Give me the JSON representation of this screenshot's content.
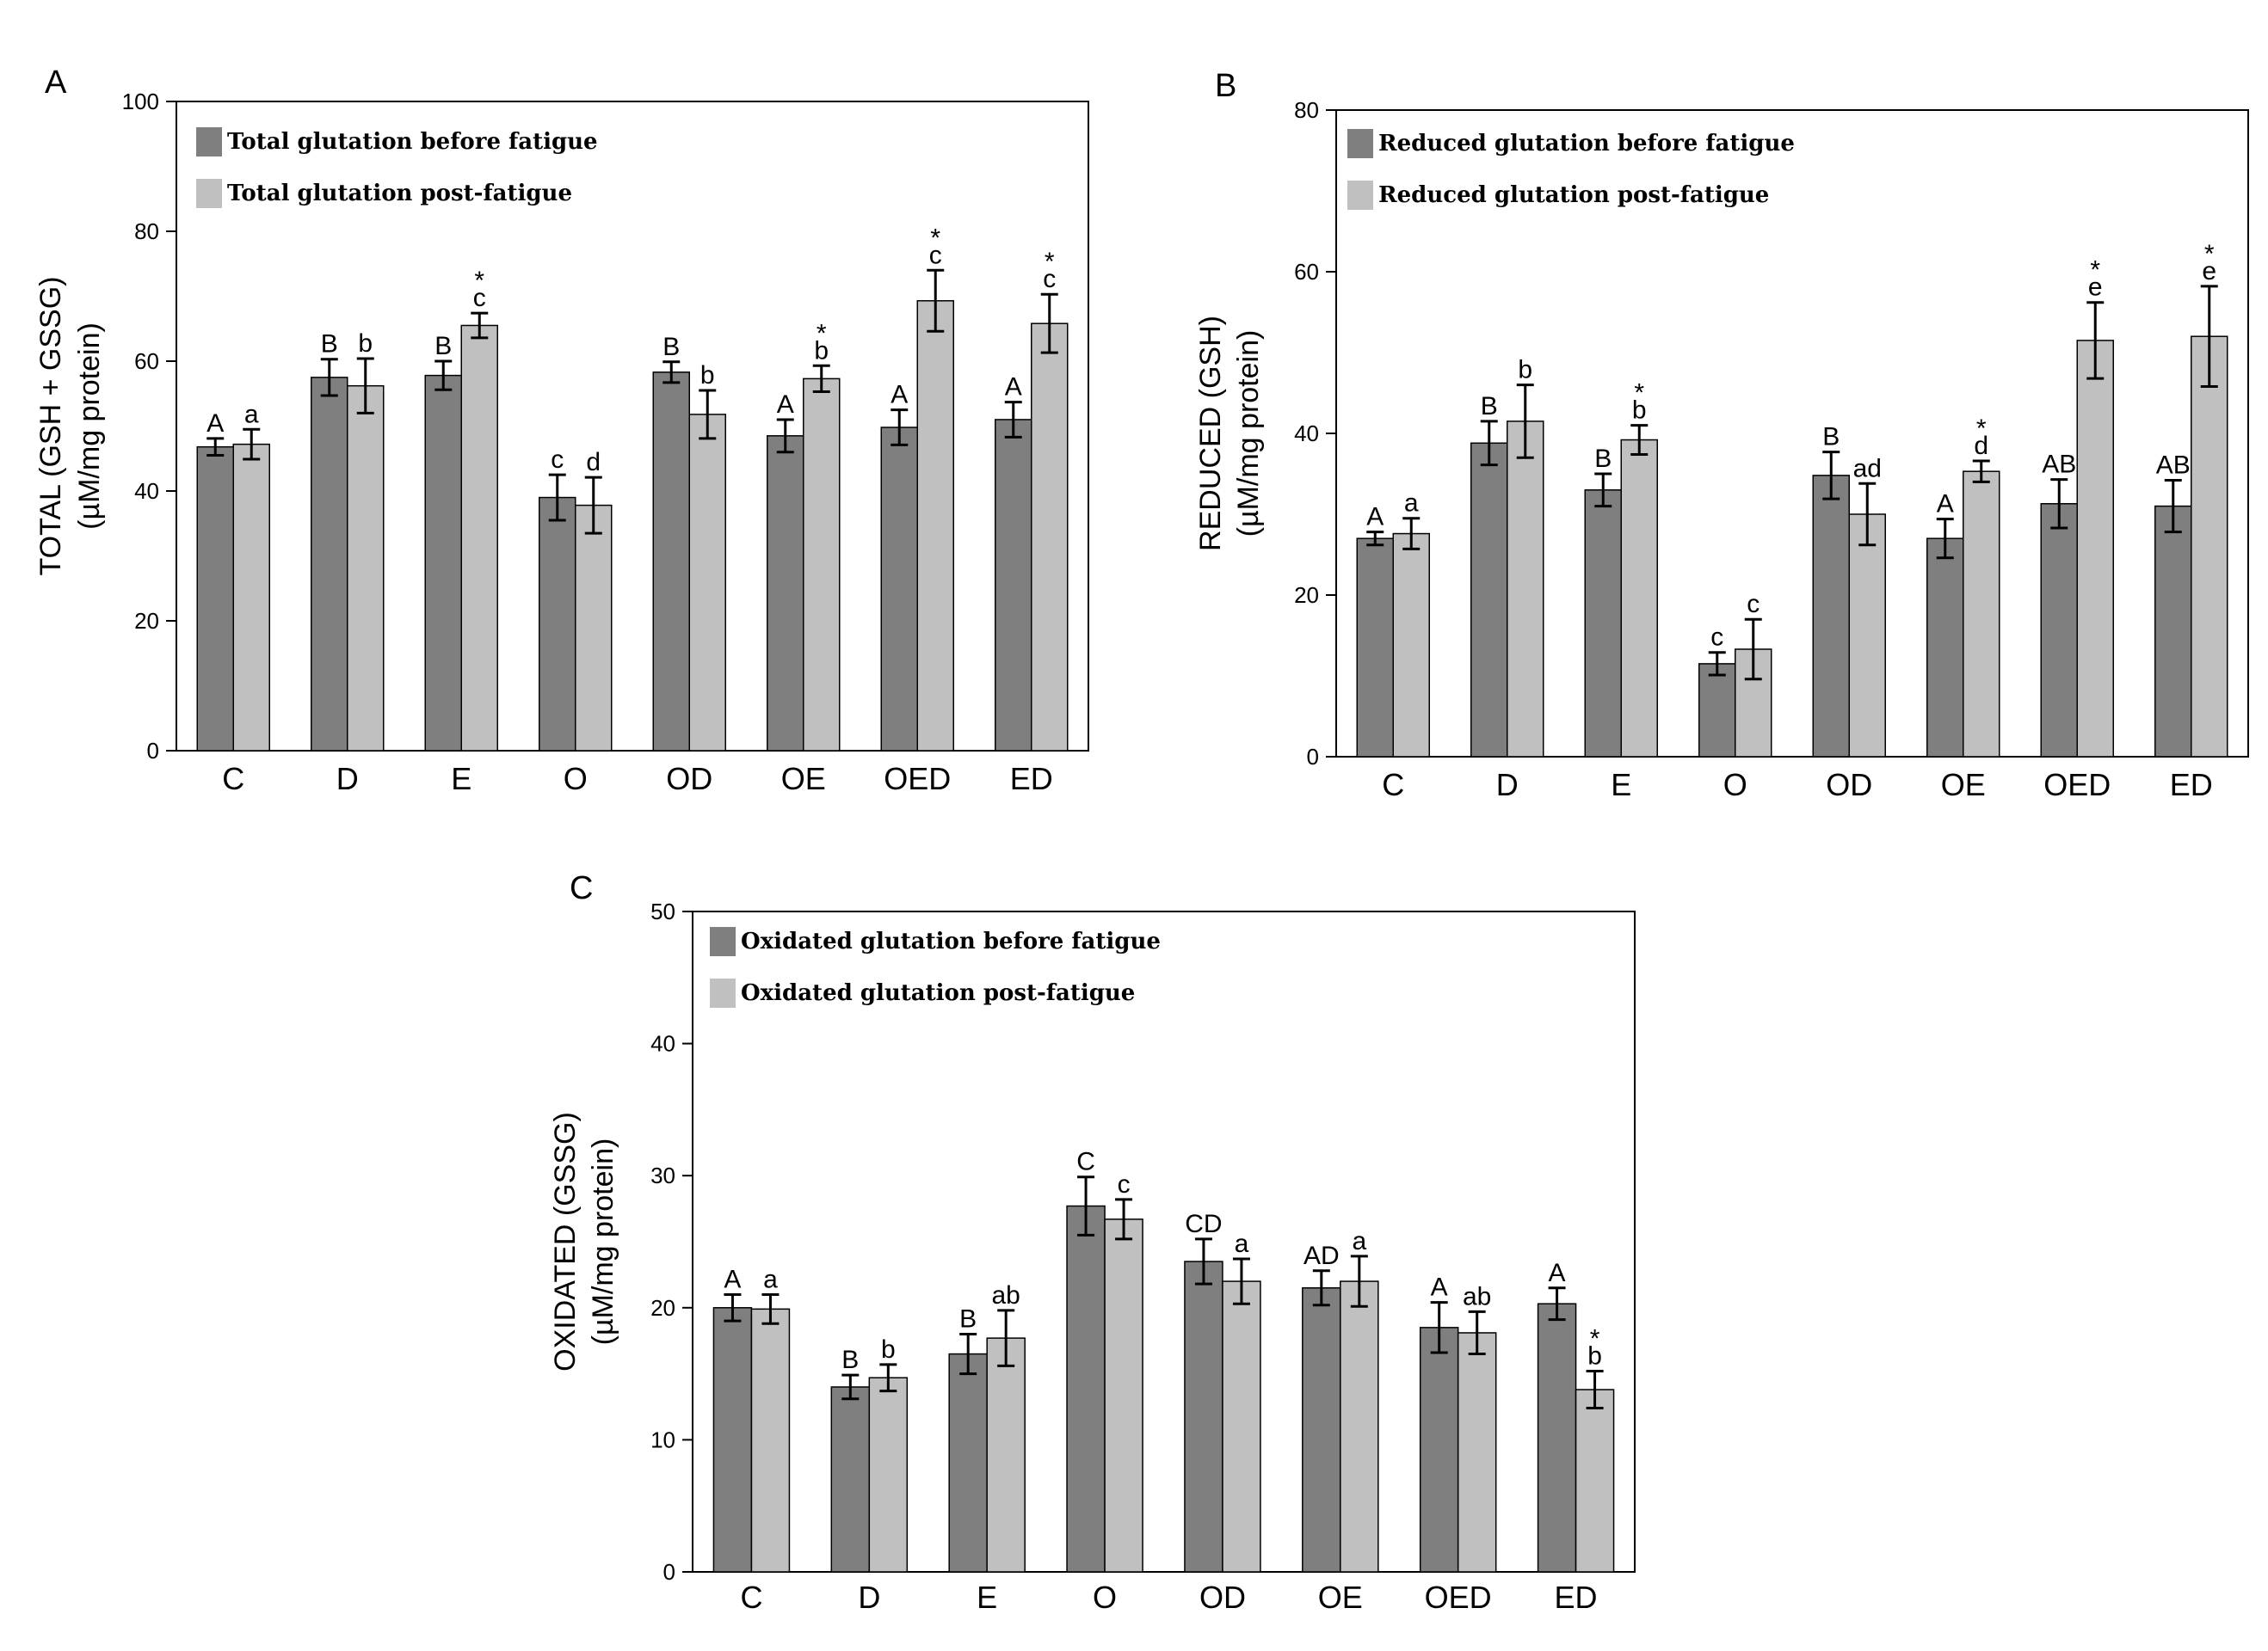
{
  "chart_data": [
    {
      "type": "bar",
      "panel": "A",
      "categories": [
        "C",
        "D",
        "E",
        "O",
        "OD",
        "OE",
        "OED",
        "ED"
      ],
      "ylabel_line1": "TOTAL (GSH + GSSG)",
      "ylabel_line2": "(µM/mg protein)",
      "ylim": [
        0,
        100
      ],
      "yticks": [
        0,
        20,
        40,
        60,
        80,
        100
      ],
      "colors": {
        "before": "#7f7f7f",
        "post": "#c0c0c0"
      },
      "series": [
        {
          "name": "Total glutation before fatigue",
          "values": [
            46.8,
            57.5,
            57.8,
            39,
            58.3,
            48.5,
            49.8,
            51
          ],
          "errors": [
            1.3,
            2.8,
            2.2,
            3.5,
            1.6,
            2.5,
            2.7,
            2.7
          ],
          "labels": [
            "A",
            "B",
            "B",
            "c",
            "B",
            "A",
            "A",
            "A"
          ]
        },
        {
          "name": "Total glutation post-fatigue",
          "values": [
            47.2,
            56.2,
            65.5,
            37.8,
            51.8,
            57.3,
            69.3,
            65.8
          ],
          "errors": [
            2.3,
            4.2,
            1.9,
            4.3,
            3.7,
            2,
            4.7,
            4.5
          ],
          "labels": [
            "a",
            "b",
            "c",
            "d",
            "b",
            "b",
            "c",
            "c"
          ],
          "stars": [
            "",
            "",
            "*",
            "",
            "",
            "*",
            "*",
            "*"
          ]
        }
      ]
    },
    {
      "type": "bar",
      "panel": "B",
      "categories": [
        "C",
        "D",
        "E",
        "O",
        "OD",
        "OE",
        "OED",
        "ED"
      ],
      "ylabel_line1": "REDUCED (GSH)",
      "ylabel_line2": "(µM/mg protein)",
      "ylim": [
        0,
        80
      ],
      "yticks": [
        0,
        20,
        40,
        60,
        80
      ],
      "colors": {
        "before": "#7f7f7f",
        "post": "#c0c0c0"
      },
      "series": [
        {
          "name": "Reduced glutation before fatigue",
          "values": [
            27,
            38.8,
            33,
            11.5,
            34.8,
            27,
            31.3,
            31
          ],
          "errors": [
            0.8,
            2.7,
            2,
            1.4,
            2.9,
            2.4,
            3,
            3.2
          ],
          "labels": [
            "A",
            "B",
            "B",
            "c",
            "B",
            "A",
            "AB",
            "AB"
          ]
        },
        {
          "name": "Reduced glutation post-fatigue",
          "values": [
            27.6,
            41.5,
            39.2,
            13.3,
            30,
            35.3,
            51.5,
            52
          ],
          "errors": [
            1.9,
            4.5,
            1.8,
            3.7,
            3.8,
            1.3,
            4.7,
            6.2
          ],
          "labels": [
            "a",
            "b",
            "b",
            "c",
            "ad",
            "d",
            "e",
            "e"
          ],
          "stars": [
            "",
            "",
            "*",
            "",
            "",
            "*",
            "*",
            "*"
          ]
        }
      ]
    },
    {
      "type": "bar",
      "panel": "C",
      "categories": [
        "C",
        "D",
        "E",
        "O",
        "OD",
        "OE",
        "OED",
        "ED"
      ],
      "ylabel_line1": "OXIDATED (GSSG)",
      "ylabel_line2": "(µM/mg protein)",
      "ylim": [
        0,
        50
      ],
      "yticks": [
        0,
        10,
        20,
        30,
        40,
        50
      ],
      "colors": {
        "before": "#7f7f7f",
        "post": "#c0c0c0"
      },
      "series": [
        {
          "name": "Oxidated glutation before fatigue",
          "values": [
            20,
            14,
            16.5,
            27.7,
            23.5,
            21.5,
            18.5,
            20.3
          ],
          "errors": [
            1,
            0.9,
            1.5,
            2.2,
            1.7,
            1.3,
            1.9,
            1.2
          ],
          "labels": [
            "A",
            "B",
            "B",
            "C",
            "CD",
            "AD",
            "A",
            "A"
          ]
        },
        {
          "name": "Oxidated glutation post-fatigue",
          "values": [
            19.9,
            14.7,
            17.7,
            26.7,
            22,
            22,
            18.1,
            13.8
          ],
          "errors": [
            1.1,
            1,
            2.1,
            1.5,
            1.7,
            1.9,
            1.6,
            1.4
          ],
          "labels": [
            "a",
            "b",
            "ab",
            "c",
            "a",
            "a",
            "ab",
            "b"
          ],
          "stars": [
            "",
            "",
            "",
            "",
            "",
            "",
            "",
            "*"
          ]
        }
      ]
    }
  ]
}
